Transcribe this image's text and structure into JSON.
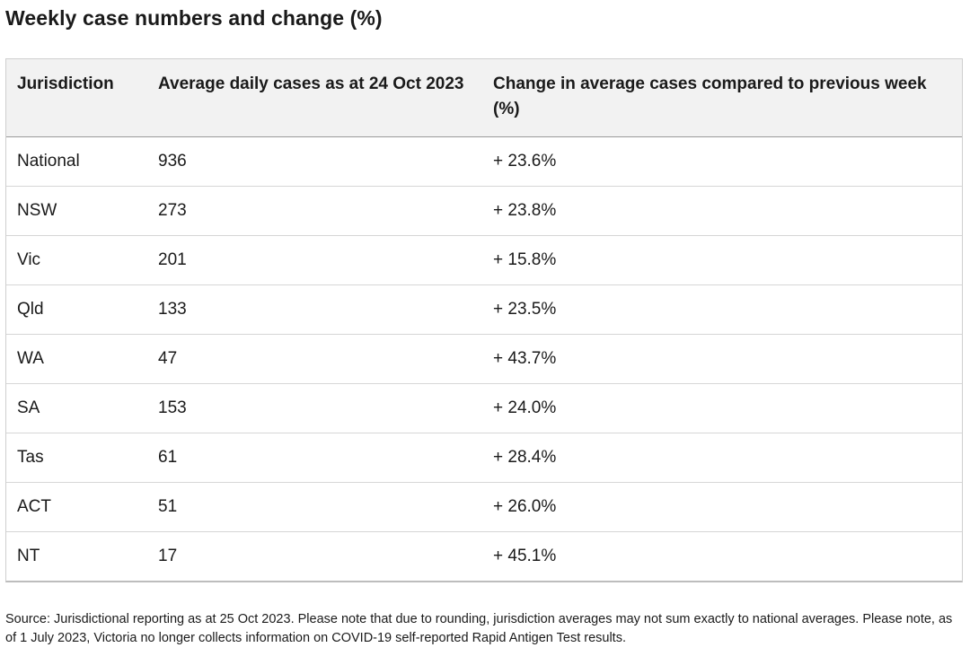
{
  "title": "Weekly case numbers and change (%)",
  "table": {
    "headers": [
      "Jurisdiction",
      "Average daily cases as at 24 Oct 2023",
      "Change in average cases compared to previous week (%)"
    ],
    "rows": [
      [
        "National",
        "936",
        "+ 23.6%"
      ],
      [
        "NSW",
        "273",
        "+ 23.8%"
      ],
      [
        "Vic",
        "201",
        "+ 15.8%"
      ],
      [
        "Qld",
        "133",
        "+ 23.5%"
      ],
      [
        "WA",
        "47",
        "+ 43.7%"
      ],
      [
        "SA",
        "153",
        "+ 24.0%"
      ],
      [
        "Tas",
        "61",
        "+ 28.4%"
      ],
      [
        "ACT",
        "51",
        "+ 26.0%"
      ],
      [
        "NT",
        "17",
        "+ 45.1%"
      ]
    ]
  },
  "source_note": "Source: Jurisdictional reporting as at 25 Oct 2023. Please note that due to rounding, jurisdiction averages may not sum exactly to national averages. Please note, as of 1 July 2023, Victoria no longer collects information on COVID-19 self-reported Rapid Antigen Test results."
}
